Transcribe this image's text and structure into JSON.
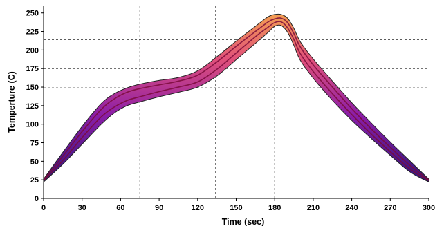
{
  "chart_data": {
    "type": "area",
    "title": "",
    "xlabel": "Time (sec)",
    "ylabel": "Temperture (C)",
    "xlim": [
      0,
      300
    ],
    "ylim": [
      0,
      260
    ],
    "xticks": [
      0,
      30,
      60,
      90,
      120,
      150,
      180,
      210,
      240,
      270,
      300
    ],
    "yticks": [
      0,
      25,
      50,
      75,
      100,
      125,
      150,
      175,
      200,
      225,
      250
    ],
    "grid": false,
    "legend": "none",
    "series": [
      {
        "role": "upper-limit",
        "x": [
          0,
          15,
          30,
          45,
          55,
          65,
          75,
          90,
          105,
          120,
          135,
          150,
          165,
          175,
          180,
          185,
          190,
          195,
          200,
          210,
          225,
          240,
          255,
          270,
          285,
          300
        ],
        "y": [
          26,
          62,
          97,
          128,
          141,
          149,
          154,
          159,
          163,
          172,
          191,
          212,
          232,
          245,
          248,
          248,
          243,
          229,
          211,
          188,
          158,
          129,
          102,
          76,
          51,
          26
        ]
      },
      {
        "role": "profile-upper",
        "x": [
          0,
          15,
          30,
          45,
          55,
          65,
          75,
          90,
          105,
          120,
          135,
          150,
          165,
          175,
          180,
          185,
          190,
          195,
          200,
          210,
          225,
          240,
          255,
          270,
          285,
          300
        ],
        "y": [
          25,
          57,
          90,
          120,
          134,
          143,
          148,
          153,
          158,
          166,
          184,
          205,
          225,
          238,
          242,
          243,
          237,
          222,
          204,
          180,
          150,
          121,
          94,
          69,
          45,
          25
        ]
      },
      {
        "role": "profile-lower",
        "x": [
          0,
          15,
          30,
          45,
          55,
          65,
          75,
          90,
          105,
          120,
          135,
          150,
          165,
          175,
          180,
          185,
          190,
          195,
          200,
          210,
          225,
          240,
          255,
          270,
          285,
          300
        ],
        "y": [
          24,
          51,
          82,
          110,
          123,
          132,
          137,
          144,
          150,
          157,
          174,
          196,
          218,
          231,
          237,
          238,
          230,
          214,
          195,
          171,
          141,
          113,
          87,
          63,
          40,
          24
        ]
      },
      {
        "role": "lower-limit",
        "x": [
          0,
          15,
          30,
          45,
          55,
          65,
          75,
          90,
          105,
          120,
          135,
          150,
          165,
          175,
          180,
          185,
          190,
          195,
          200,
          210,
          225,
          240,
          255,
          270,
          285,
          300
        ],
        "y": [
          22,
          46,
          73,
          100,
          115,
          125,
          130,
          137,
          143,
          150,
          165,
          187,
          209,
          224,
          232,
          233,
          224,
          206,
          186,
          162,
          132,
          105,
          81,
          58,
          36,
          22
        ]
      }
    ],
    "reference_lines": {
      "vertical_x": [
        75,
        134,
        180
      ],
      "horizontal_y": [
        149,
        175,
        214
      ]
    },
    "colors": {
      "cool": "#1a1570",
      "mid": "#8b1ea8",
      "warm": "#e0507a",
      "hot": "#f4a050",
      "inner_line": "#7a0a3a",
      "outline": "#222222",
      "ref_line": "#444444"
    }
  }
}
